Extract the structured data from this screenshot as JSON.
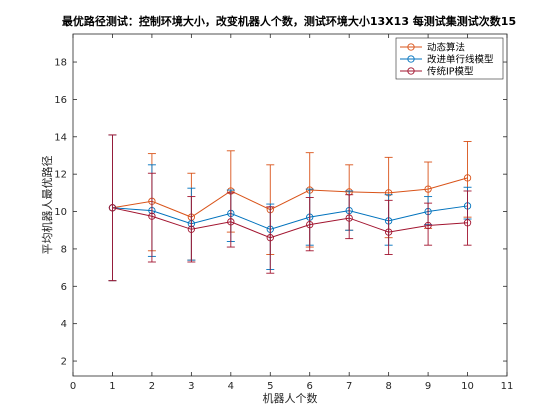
{
  "chart_data": {
    "type": "line",
    "title": "最优路径测试：控制环境大小，改变机器人个数，测试环境大小13X13 每测试集测试次数15",
    "xlabel": "机器人个数",
    "ylabel": "平均机器人最优路径",
    "xlim": [
      0,
      11
    ],
    "ylim": [
      1.2,
      19.5
    ],
    "xticks": [
      0,
      1,
      2,
      3,
      4,
      5,
      6,
      7,
      8,
      9,
      10,
      11
    ],
    "yticks": [
      2,
      4,
      6,
      8,
      10,
      12,
      14,
      16,
      18
    ],
    "grid": false,
    "legend_position": "top-right",
    "x": [
      1,
      2,
      3,
      4,
      5,
      6,
      7,
      8,
      9,
      10
    ],
    "series": [
      {
        "name": "动态算法",
        "color": "#D95319",
        "values": [
          10.2,
          10.55,
          9.7,
          11.1,
          10.1,
          11.15,
          11.05,
          11.0,
          11.2,
          11.8
        ],
        "lower": [
          6.3,
          7.9,
          7.4,
          8.9,
          7.7,
          8.1,
          9.0,
          8.6,
          9.1,
          9.7
        ],
        "upper": [
          14.1,
          13.1,
          12.05,
          13.25,
          12.5,
          13.15,
          12.5,
          12.9,
          12.65,
          13.75
        ]
      },
      {
        "name": "改进单行线模型",
        "color": "#0072BD",
        "values": [
          10.2,
          10.05,
          9.35,
          9.9,
          9.05,
          9.7,
          10.05,
          9.5,
          10.0,
          10.3
        ],
        "lower": [
          6.3,
          7.6,
          7.4,
          8.4,
          6.9,
          8.2,
          9.0,
          8.2,
          9.3,
          9.6
        ],
        "upper": [
          14.1,
          12.5,
          11.25,
          11.15,
          10.4,
          11.2,
          11.1,
          10.9,
          10.8,
          11.3
        ]
      },
      {
        "name": "传统IP模型",
        "color": "#A2142F",
        "values": [
          10.2,
          9.75,
          9.05,
          9.45,
          8.6,
          9.3,
          9.65,
          8.9,
          9.25,
          9.4
        ],
        "lower": [
          6.3,
          7.3,
          7.3,
          8.1,
          6.7,
          7.9,
          8.55,
          7.7,
          8.2,
          8.2
        ],
        "upper": [
          14.1,
          12.05,
          10.8,
          11.0,
          10.25,
          10.75,
          10.9,
          10.6,
          10.45,
          11.1
        ]
      }
    ]
  }
}
